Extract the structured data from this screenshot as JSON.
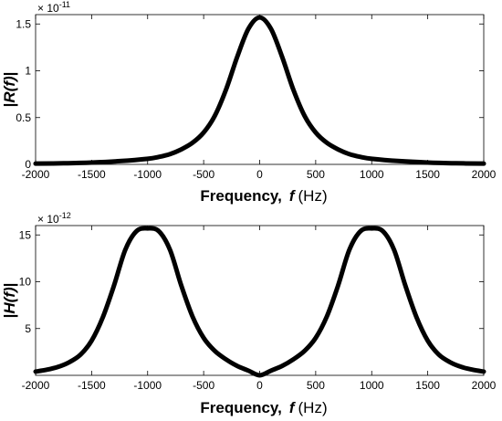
{
  "chart_data": [
    {
      "type": "line",
      "ylabel_parts": {
        "pre": "|",
        "func": "R(f)",
        "post": "|"
      },
      "xlabel_parts": {
        "main": "Frequency,",
        "var": "f",
        "unit": "(Hz)"
      },
      "multiplier": {
        "base": "× 10",
        "exp": "-11"
      },
      "xlim": [
        -2000,
        2000
      ],
      "ylim": [
        0,
        1.6
      ],
      "xticks": [
        -2000,
        -1500,
        -1000,
        -500,
        0,
        500,
        1000,
        1500,
        2000
      ],
      "xtick_labels": [
        "-2000",
        "-1500",
        "-1000",
        "-500",
        "0",
        "500",
        "1000",
        "1500",
        "2000"
      ],
      "yticks": [
        0,
        0.5,
        1,
        1.5
      ],
      "ytick_labels": [
        "0",
        "0.5",
        "1",
        "1.5"
      ],
      "series": [
        {
          "color": "#000000",
          "x": [
            -2000,
            -1750,
            -1500,
            -1250,
            -1000,
            -900,
            -800,
            -700,
            -600,
            -500,
            -400,
            -300,
            -200,
            -100,
            0,
            100,
            200,
            300,
            400,
            500,
            600,
            700,
            800,
            900,
            1000,
            1250,
            1500,
            1750,
            2000
          ],
          "y": [
            0.008,
            0.012,
            0.02,
            0.035,
            0.06,
            0.08,
            0.11,
            0.16,
            0.23,
            0.34,
            0.52,
            0.8,
            1.15,
            1.45,
            1.57,
            1.45,
            1.15,
            0.8,
            0.52,
            0.34,
            0.23,
            0.16,
            0.11,
            0.08,
            0.06,
            0.035,
            0.02,
            0.012,
            0.008
          ]
        }
      ]
    },
    {
      "type": "line",
      "ylabel_parts": {
        "pre": "|",
        "func": "H(f)",
        "post": "|"
      },
      "xlabel_parts": {
        "main": "Frequency,",
        "var": "f",
        "unit": "(Hz)"
      },
      "multiplier": {
        "base": "× 10",
        "exp": "-12"
      },
      "xlim": [
        -2000,
        2000
      ],
      "ylim": [
        0,
        16
      ],
      "xticks": [
        -2000,
        -1500,
        -1000,
        -500,
        0,
        500,
        1000,
        1500,
        2000
      ],
      "xtick_labels": [
        "-2000",
        "-1500",
        "-1000",
        "-500",
        "0",
        "500",
        "1000",
        "1500",
        "2000"
      ],
      "yticks": [
        5,
        10,
        15
      ],
      "ytick_labels": [
        "5",
        "10",
        "15"
      ],
      "series": [
        {
          "color": "#000000",
          "x": [
            -2000,
            -1900,
            -1800,
            -1700,
            -1600,
            -1500,
            -1400,
            -1300,
            -1200,
            -1100,
            -1000,
            -900,
            -800,
            -700,
            -600,
            -500,
            -400,
            -300,
            -200,
            -100,
            0,
            100,
            200,
            300,
            400,
            500,
            600,
            700,
            800,
            900,
            1000,
            1100,
            1200,
            1300,
            1400,
            1500,
            1600,
            1700,
            1800,
            1900,
            2000
          ],
          "y": [
            0.4,
            0.6,
            0.9,
            1.4,
            2.2,
            3.7,
            6.2,
            9.6,
            13.4,
            15.4,
            15.7,
            15.4,
            13.4,
            9.6,
            6.3,
            4.0,
            2.6,
            1.7,
            1.0,
            0.5,
            0.0,
            0.5,
            1.0,
            1.7,
            2.6,
            4.0,
            6.3,
            9.6,
            13.4,
            15.4,
            15.7,
            15.4,
            13.4,
            9.6,
            6.2,
            3.7,
            2.2,
            1.4,
            0.9,
            0.6,
            0.4
          ]
        }
      ]
    }
  ]
}
